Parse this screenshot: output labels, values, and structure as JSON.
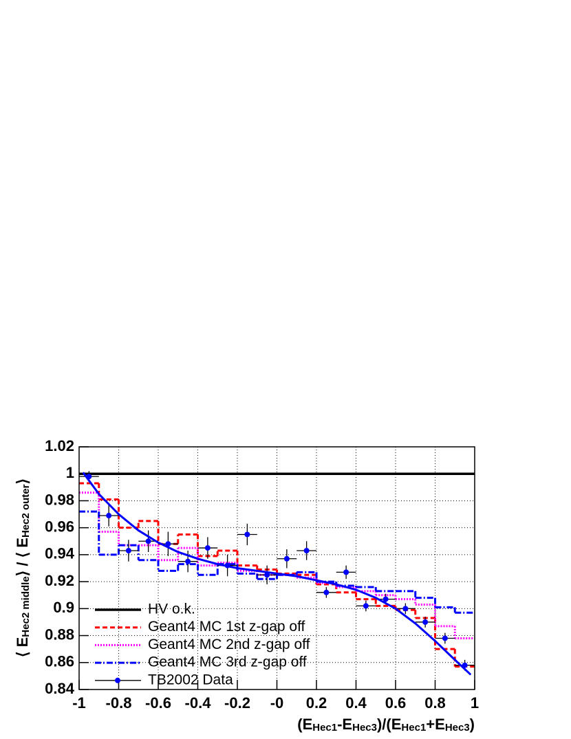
{
  "chart_data": {
    "type": "histogram",
    "x_label": {
      "parts": [
        "(E",
        "Hec1",
        "-E",
        "Hec3",
        ")/(E",
        "Hec1",
        "+E",
        "Hec3",
        ")"
      ],
      "sub": [
        false,
        true,
        false,
        true,
        false,
        true,
        false,
        true,
        false
      ]
    },
    "y_label": {
      "parts": [
        "⟨ E",
        "Hec2 middle",
        "⟩ / ⟨ E",
        "Hec2 outer",
        "⟩"
      ],
      "sub": [
        false,
        true,
        false,
        true,
        false
      ]
    },
    "bins": [
      -1,
      -0.9,
      -0.8,
      -0.7,
      -0.6,
      -0.5,
      -0.4,
      -0.3,
      -0.2,
      -0.1,
      0,
      0.1,
      0.2,
      0.3,
      0.4,
      0.5,
      0.6,
      0.7,
      0.8,
      0.9,
      1
    ],
    "xlim": [
      -1,
      1
    ],
    "xticks": [
      -1,
      -0.8,
      -0.6,
      -0.4,
      -0.2,
      {
        "value": 0,
        "label": "-0"
      },
      0.2,
      0.4,
      0.6,
      0.8,
      1
    ],
    "ylim": [
      0.84,
      1.02
    ],
    "yticks": [
      0.84,
      0.86,
      0.88,
      0.9,
      0.92,
      0.94,
      0.96,
      0.98,
      1,
      1.02
    ],
    "grid": true,
    "legend": "lower-left",
    "series": [
      {
        "name": "HV o.k.",
        "color": "#000000",
        "style": "hline",
        "y": 1
      },
      {
        "name": "Geant4 MC 1st z-gap off",
        "color": "#ff0000",
        "style": "dashed",
        "values": [
          0.993,
          0.981,
          0.96,
          0.965,
          0.948,
          0.955,
          0.939,
          0.943,
          0.932,
          0.929,
          0.926,
          0.925,
          0.918,
          0.912,
          0.907,
          0.902,
          0.899,
          0.893,
          0.87,
          0.857
        ]
      },
      {
        "name": "Geant4 MC 2nd z-gap off",
        "color": "#ff00ff",
        "style": "dotted",
        "values": [
          0.986,
          0.957,
          0.947,
          0.947,
          0.936,
          0.945,
          0.932,
          0.934,
          0.928,
          0.925,
          0.925,
          0.923,
          0.919,
          0.916,
          0.913,
          0.91,
          0.907,
          0.903,
          0.887,
          0.878
        ]
      },
      {
        "name": "Geant4 MC 3rd z-gap off",
        "color": "#0000ff",
        "style": "dashdot",
        "values": [
          0.972,
          0.94,
          0.947,
          0.936,
          0.928,
          0.933,
          0.925,
          0.933,
          0.926,
          0.922,
          0.925,
          0.927,
          0.92,
          0.917,
          0.916,
          0.913,
          0.913,
          0.908,
          0.901,
          0.897
        ]
      },
      {
        "name": "TB2002 Data",
        "color": "#0000ff",
        "style": "points",
        "values": [
          0.998,
          0.969,
          0.943,
          0.95,
          0.948,
          0.935,
          0.945,
          0.932,
          0.955,
          0.925,
          0.937,
          0.943,
          0.912,
          0.927,
          0.902,
          0.907,
          0.9,
          0.89,
          0.878,
          0.858
        ],
        "yerr": [
          0.004,
          0.008,
          0.008,
          0.008,
          0.009,
          0.008,
          0.008,
          0.008,
          0.008,
          0.007,
          0.007,
          0.007,
          0.004,
          0.005,
          0.004,
          0.004,
          0.004,
          0.004,
          0.004,
          0.004
        ]
      },
      {
        "color": "#0000ff",
        "style": "curve",
        "x": [
          -0.98,
          -0.9,
          -0.8,
          -0.7,
          -0.6,
          -0.5,
          -0.4,
          -0.3,
          -0.2,
          -0.1,
          0,
          0.1,
          0.2,
          0.3,
          0.4,
          0.5,
          0.6,
          0.7,
          0.8,
          0.9,
          0.98
        ],
        "values": [
          1.001,
          0.985,
          0.97,
          0.958,
          0.949,
          0.942,
          0.937,
          0.933,
          0.93,
          0.928,
          0.926,
          0.924,
          0.921,
          0.918,
          0.914,
          0.908,
          0.9,
          0.889,
          0.876,
          0.862,
          0.851
        ]
      }
    ]
  }
}
